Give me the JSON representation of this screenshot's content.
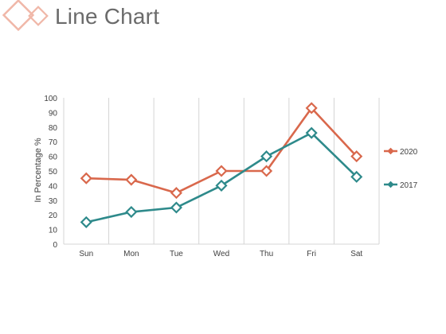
{
  "slide": {
    "title": "Line Chart"
  },
  "colors": {
    "series_2020": "#D9684C",
    "series_2017": "#2E8A8B",
    "grid": "#D4D4D4",
    "logo": "#F0B7A8"
  },
  "icons": {
    "logo": "diamond-outline-logo"
  },
  "chart_data": {
    "type": "line",
    "title": "",
    "xlabel": "",
    "ylabel": "In Percentage %",
    "categories": [
      "Sun",
      "Mon",
      "Tue",
      "Wed",
      "Thu",
      "Fri",
      "Sat"
    ],
    "ylim": [
      0,
      100
    ],
    "yticks": [
      0,
      10,
      20,
      30,
      40,
      50,
      60,
      70,
      80,
      90,
      100
    ],
    "grid": "vertical",
    "legend": "right",
    "series": [
      {
        "name": "2020",
        "color": "#D9684C",
        "values": [
          45,
          44,
          35,
          50,
          50,
          93,
          60
        ]
      },
      {
        "name": "2017",
        "color": "#2E8A8B",
        "values": [
          15,
          22,
          25,
          40,
          60,
          76,
          46
        ]
      }
    ]
  }
}
